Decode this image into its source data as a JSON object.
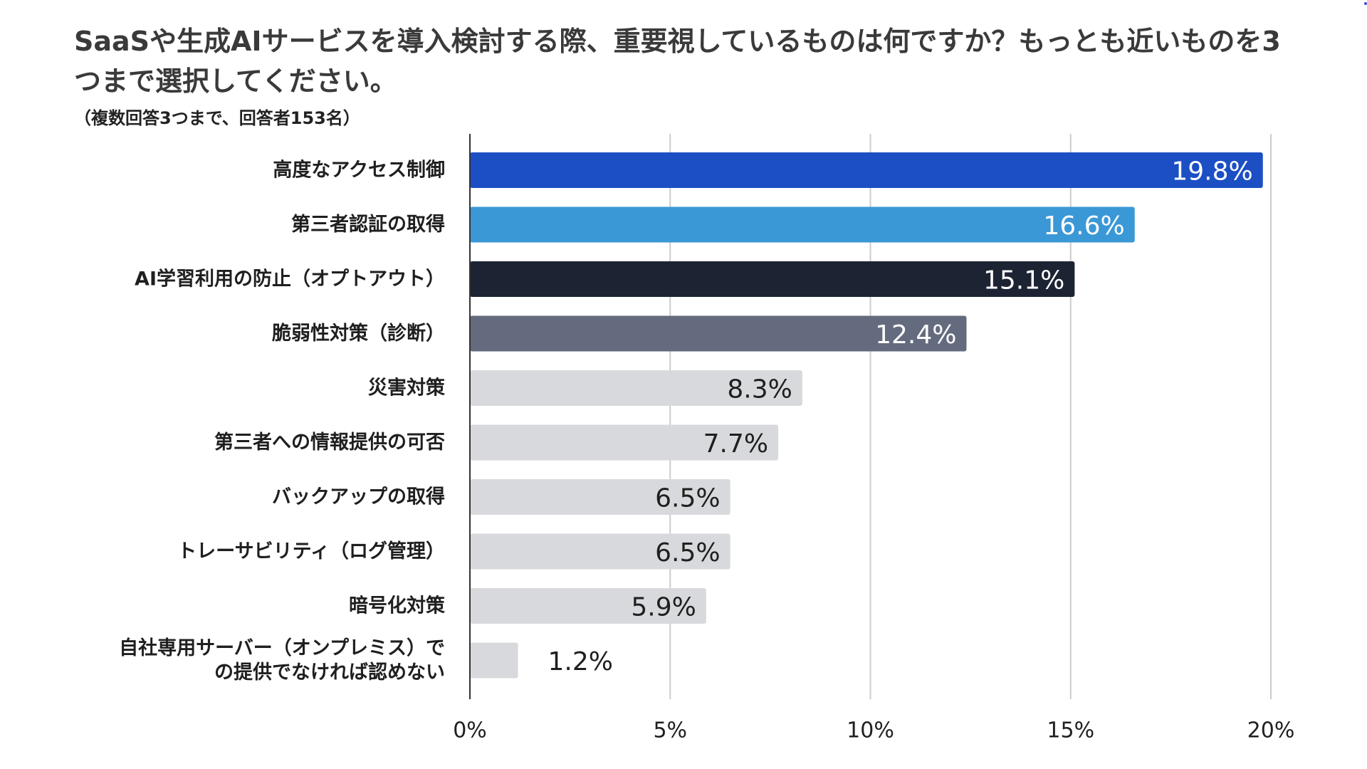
{
  "chart_data": {
    "type": "bar",
    "orientation": "horizontal",
    "title": "SaaSや生成AIサービスを導入検討する際、重要視しているものは何ですか？もっとも近いものを3つまで選択してください。",
    "subtitle": "（複数回答3つまで、回答者153名）",
    "categories": [
      [
        "高度なアクセス制御"
      ],
      [
        "第三者認証の取得"
      ],
      [
        "AI学習利用の防止（オプトアウト）"
      ],
      [
        "脆弱性対策（診断）"
      ],
      [
        "災害対策"
      ],
      [
        "第三者への情報提供の可否"
      ],
      [
        "バックアップの取得"
      ],
      [
        "トレーサビリティ（ログ管理）"
      ],
      [
        "暗号化対策"
      ],
      [
        "自社専用サーバー（オンプレミス）で",
        "の提供でなければ認めない"
      ]
    ],
    "values": [
      19.8,
      16.6,
      15.1,
      12.4,
      8.3,
      7.7,
      6.5,
      6.5,
      5.9,
      1.2
    ],
    "value_labels": [
      "19.8%",
      "16.6%",
      "15.1%",
      "12.4%",
      "8.3%",
      "7.7%",
      "6.5%",
      "6.5%",
      "5.9%",
      "1.2%"
    ],
    "colors": [
      "#1c4fc4",
      "#3b98d6",
      "#1c2333",
      "#646b7e",
      "#d8d9dc",
      "#d8d9dc",
      "#d8d9dc",
      "#d8d9dc",
      "#d8d9dc",
      "#d8d9dc"
    ],
    "label_colors": [
      "#ffffff",
      "#ffffff",
      "#ffffff",
      "#ffffff",
      "#1f1f1f",
      "#1f1f1f",
      "#1f1f1f",
      "#1f1f1f",
      "#1f1f1f",
      "#1f1f1f"
    ],
    "xlim": [
      0,
      20
    ],
    "xticks": [
      0,
      5,
      10,
      15,
      20
    ],
    "xtick_labels": [
      "0%",
      "5%",
      "10%",
      "15%",
      "20%"
    ],
    "grid": true,
    "gridline_color": "#cccccc",
    "axis_color": "#333333"
  }
}
